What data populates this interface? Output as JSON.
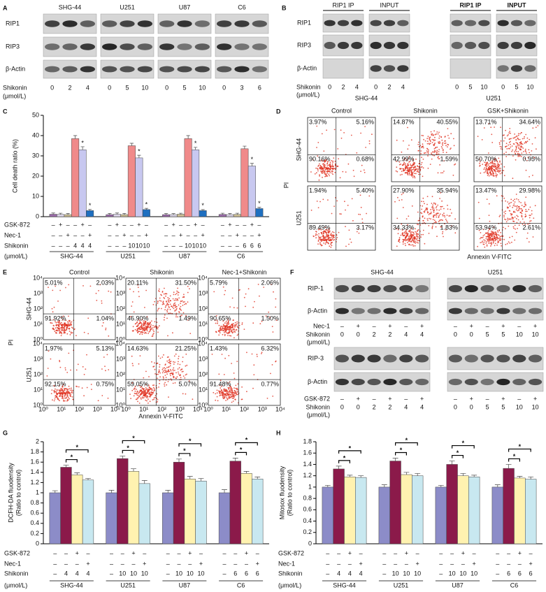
{
  "panels": {
    "A": {
      "label": "A",
      "cell_lines": [
        "SHG-44",
        "U251",
        "U87",
        "C6"
      ],
      "rows": [
        "RIP1",
        "RIP3",
        "β-Actin"
      ],
      "dose_label": "Shikonin",
      "dose_unit": "(μmol/L)",
      "doses": [
        [
          0,
          2,
          4
        ],
        [
          0,
          5,
          10
        ],
        [
          0,
          5,
          10
        ],
        [
          0,
          3,
          6
        ]
      ]
    },
    "B": {
      "label": "B",
      "headers": [
        "RIP1 IP",
        "INPUT"
      ],
      "rows": [
        "RIP1",
        "RIP3",
        "β-Actin"
      ],
      "dose_label": "Shikonin",
      "dose_unit": "(μmol/L)",
      "blots": [
        {
          "cell_line": "SHG-44",
          "doses": [
            0,
            2,
            4,
            0,
            2,
            4
          ]
        },
        {
          "cell_line": "U251",
          "doses": [
            0,
            5,
            10,
            0,
            5,
            10
          ]
        }
      ]
    },
    "D": {
      "label": "D",
      "columns": [
        "Control",
        "Shikonin",
        "GSK+Shikonin"
      ],
      "y_label": "PI",
      "x_label": "Annexin V-FITC",
      "rows": [
        {
          "cell_line": "SHG-44",
          "quadrants": [
            [
              "3.97%",
              "5.16%",
              "90.16%",
              "0.68%"
            ],
            [
              "14.87%",
              "40.55%",
              "42.99%",
              "1.59%"
            ],
            [
              "13.71%",
              "34.64%",
              "50.70%",
              "0.95%"
            ]
          ]
        },
        {
          "cell_line": "U251",
          "quadrants": [
            [
              "1.94%",
              "5.40%",
              "89.49%",
              "3.17%"
            ],
            [
              "27.90%",
              "35.94%",
              "34.33%",
              "1.83%"
            ],
            [
              "13.47%",
              "29.98%",
              "53.94%",
              "2.61%"
            ]
          ]
        }
      ]
    },
    "E": {
      "label": "E",
      "columns": [
        "Control",
        "Shikonin",
        "Nec-1+Shikonin"
      ],
      "y_label": "PI",
      "x_label": "Annexin V-FITC",
      "axis_ticks": [
        "10⁰",
        "10¹",
        "10²",
        "10³",
        "10⁴"
      ],
      "rows": [
        {
          "cell_line": "SHG-44",
          "quadrants": [
            [
              "5.01%",
              "2.03%",
              "91.92%",
              "1.04%"
            ],
            [
              "20.11%",
              "31.50%",
              "46.90%",
              "1.49%"
            ],
            [
              "5.79%",
              "2.06%",
              "90.65%",
              "1.50%"
            ]
          ]
        },
        {
          "cell_line": "U251",
          "quadrants": [
            [
              "1.97%",
              "5.13%",
              "92.15%",
              "0.75%"
            ],
            [
              "14.63%",
              "21.25%",
              "59.05%",
              "5.07%"
            ],
            [
              "1.43%",
              "6.32%",
              "91.48%",
              "0.77%"
            ]
          ]
        }
      ]
    },
    "F": {
      "label": "F",
      "cell_lines": [
        "SHG-44",
        "U251"
      ],
      "top_rows": [
        "RIP-1",
        "β-Actin"
      ],
      "bottom_rows": [
        "RIP-3",
        "β-Actin"
      ],
      "top_treatment": "Nec-1",
      "bottom_treatment": "GSK-872",
      "signs": [
        "–",
        "+",
        "–",
        "+",
        "–",
        "+"
      ],
      "dose_label": "Shikonin",
      "dose_unit": "(μmol/L)",
      "doses": [
        [
          0,
          0,
          2,
          2,
          4,
          4
        ],
        [
          0,
          0,
          5,
          5,
          10,
          10
        ]
      ]
    }
  },
  "chart_data": [
    {
      "type": "bar",
      "label": "C",
      "y_label": [
        "Cell death ratio (%)"
      ],
      "categories": [
        "SHG-44",
        "U251",
        "U87",
        "C6"
      ],
      "series": [
        {
          "color": "#9a6aa8",
          "values": [
            1.2,
            1,
            1,
            1.1
          ],
          "errors": [
            0.6,
            0.6,
            0.5,
            0.6
          ]
        },
        {
          "color": "#ddd6ea",
          "values": [
            1.1,
            1.2,
            1,
            1
          ],
          "errors": [
            0.6,
            0.6,
            0.5,
            0.6
          ]
        },
        {
          "color": "#cdbf94",
          "values": [
            1,
            1,
            1.2,
            1.1
          ],
          "errors": [
            0.6,
            0.6,
            0.5,
            0.6
          ]
        },
        {
          "color": "#f08a8a",
          "values": [
            38.5,
            35,
            38.5,
            33.5
          ],
          "errors": [
            1.5,
            1.2,
            1.5,
            1.3
          ]
        },
        {
          "color": "#c8c8f0",
          "values": [
            33,
            29,
            33,
            25
          ],
          "errors": [
            1.5,
            1.3,
            1.2,
            1.3
          ]
        },
        {
          "color": "#1e6fc0",
          "values": [
            3,
            3.5,
            3,
            4
          ],
          "errors": [
            0.6,
            0.6,
            0.5,
            0.6
          ]
        }
      ],
      "ylim": [
        0,
        50
      ],
      "yticks": [
        0,
        10,
        20,
        30,
        40,
        50
      ],
      "star": "*",
      "star_series": [
        4,
        5
      ],
      "treatments": [
        {
          "name": "GSK-872",
          "marks": [
            [
              "–",
              "+",
              "–",
              "–",
              "+",
              "–"
            ],
            [
              "–",
              "+",
              "–",
              "–",
              "+",
              "–"
            ],
            [
              "–",
              "+",
              "–",
              "–",
              "+",
              "–"
            ],
            [
              "–",
              "+",
              "–",
              "–",
              "+",
              "–"
            ]
          ]
        },
        {
          "name": "Nec-1",
          "marks": [
            [
              "–",
              "–",
              "+",
              "–",
              "–",
              "+"
            ],
            [
              "–",
              "–",
              "+",
              "–",
              "–",
              "+"
            ],
            [
              "–",
              "–",
              "+",
              "–",
              "–",
              "+"
            ],
            [
              "–",
              "–",
              "+",
              "–",
              "–",
              "+"
            ]
          ]
        },
        {
          "name": "Shikonin",
          "marks": [
            [
              "–",
              "–",
              "–",
              4,
              4,
              4
            ],
            [
              "–",
              "–",
              "–",
              10,
              10,
              10
            ],
            [
              "–",
              "–",
              "–",
              10,
              10,
              10
            ],
            [
              "–",
              "–",
              "–",
              6,
              6,
              6
            ]
          ]
        }
      ],
      "dose_unit": "(μmol/L)"
    },
    {
      "type": "bar",
      "label": "G",
      "y_label": [
        "DCFH-DA fluodensity",
        "(Ratio to control)"
      ],
      "categories": [
        "SHG-44",
        "U251",
        "U87",
        "C6"
      ],
      "series": [
        {
          "color": "#8c8cc8",
          "values": [
            1,
            1,
            1,
            1
          ],
          "errors": [
            0.04,
            0.05,
            0.05,
            0.06
          ]
        },
        {
          "color": "#8b1a4a",
          "values": [
            1.5,
            1.67,
            1.6,
            1.62
          ],
          "errors": [
            0.04,
            0.05,
            0.06,
            0.06
          ]
        },
        {
          "color": "#fff2b0",
          "values": [
            1.35,
            1.42,
            1.27,
            1.38
          ],
          "errors": [
            0.04,
            0.05,
            0.05,
            0.04
          ]
        },
        {
          "color": "#c8e8f0",
          "values": [
            1.25,
            1.18,
            1.23,
            1.27
          ],
          "errors": [
            0.03,
            0.06,
            0.05,
            0.04
          ]
        }
      ],
      "ylim": [
        0,
        2
      ],
      "yticks": [
        0,
        0.2,
        0.4,
        0.6,
        0.8,
        1,
        1.2,
        1.4,
        1.6,
        1.8,
        2
      ],
      "star": "*",
      "brackets": [
        [
          1,
          2
        ],
        [
          1,
          3
        ]
      ],
      "treatments": [
        {
          "name": "GSK-872",
          "marks": [
            [
              "–",
              "–",
              "+",
              "–"
            ],
            [
              "–",
              "–",
              "+",
              "–"
            ],
            [
              "–",
              "–",
              "+",
              "–"
            ],
            [
              "–",
              "–",
              "+",
              "–"
            ]
          ]
        },
        {
          "name": "Nec-1",
          "marks": [
            [
              "–",
              "–",
              "–",
              "+"
            ],
            [
              "–",
              "–",
              "–",
              "+"
            ],
            [
              "–",
              "–",
              "–",
              "+"
            ],
            [
              "–",
              "–",
              "–",
              "+"
            ]
          ]
        },
        {
          "name": "Shikonin",
          "marks": [
            [
              "–",
              4,
              4,
              4
            ],
            [
              "–",
              10,
              10,
              10
            ],
            [
              "–",
              10,
              10,
              10
            ],
            [
              "–",
              6,
              6,
              6
            ]
          ]
        }
      ],
      "dose_unit": "(μmol/L)"
    },
    {
      "type": "bar",
      "label": "H",
      "y_label": [
        "Mitosox fluodensity",
        "(Ratio to control)"
      ],
      "categories": [
        "SHG-44",
        "U251",
        "U87",
        "C6"
      ],
      "series": [
        {
          "color": "#8c8cc8",
          "values": [
            1,
            1,
            1,
            1
          ],
          "errors": [
            0.03,
            0.04,
            0.03,
            0.04
          ]
        },
        {
          "color": "#8b1a4a",
          "values": [
            1.32,
            1.46,
            1.4,
            1.33
          ],
          "errors": [
            0.05,
            0.05,
            0.06,
            0.07
          ]
        },
        {
          "color": "#fff2b0",
          "values": [
            1.18,
            1.22,
            1.2,
            1.16
          ],
          "errors": [
            0.03,
            0.04,
            0.04,
            0.03
          ]
        },
        {
          "color": "#c8e8f0",
          "values": [
            1.17,
            1.2,
            1.18,
            1.14
          ],
          "errors": [
            0.03,
            0.04,
            0.03,
            0.04
          ]
        }
      ],
      "ylim": [
        0,
        1.8
      ],
      "yticks": [
        0,
        0.2,
        0.4,
        0.6,
        0.8,
        1,
        1.2,
        1.4,
        1.6,
        1.8
      ],
      "star": "*",
      "brackets": [
        [
          1,
          2
        ],
        [
          1,
          3
        ]
      ],
      "treatments": [
        {
          "name": "GSK-872",
          "marks": [
            [
              "–",
              "–",
              "+",
              "–"
            ],
            [
              "–",
              "–",
              "+",
              "–"
            ],
            [
              "–",
              "–",
              "+",
              "–"
            ],
            [
              "–",
              "–",
              "+",
              "–"
            ]
          ]
        },
        {
          "name": "Nec-1",
          "marks": [
            [
              "–",
              "–",
              "–",
              "+"
            ],
            [
              "–",
              "–",
              "–",
              "+"
            ],
            [
              "–",
              "–",
              "–",
              "+"
            ],
            [
              "–",
              "–",
              "–",
              "+"
            ]
          ]
        },
        {
          "name": "Shikonin",
          "marks": [
            [
              "–",
              4,
              4,
              4
            ],
            [
              "–",
              10,
              10,
              10
            ],
            [
              "–",
              10,
              10,
              10
            ],
            [
              "–",
              6,
              6,
              6
            ]
          ]
        }
      ],
      "dose_unit": "(μmol/L)"
    }
  ]
}
